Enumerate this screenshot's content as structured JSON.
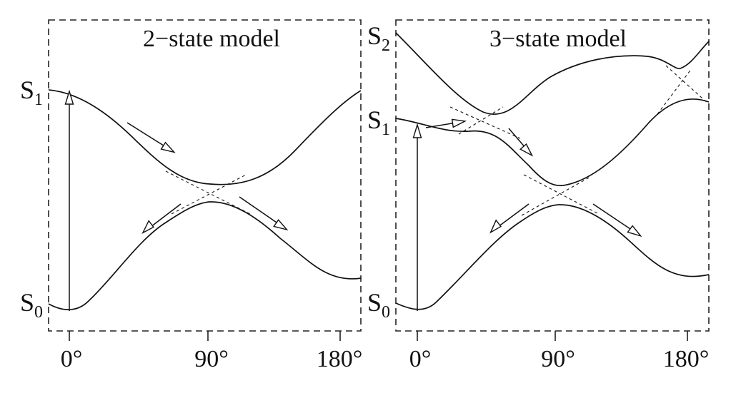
{
  "panels": [
    {
      "title": "2−state model",
      "states": [
        {
          "letter": "S",
          "sub": "1"
        },
        {
          "letter": "S",
          "sub": "0"
        }
      ],
      "ticks": [
        "0°",
        "90°",
        "180°"
      ]
    },
    {
      "title": "3−state model",
      "states": [
        {
          "letter": "S",
          "sub": "2"
        },
        {
          "letter": "S",
          "sub": "1"
        },
        {
          "letter": "S",
          "sub": "0"
        }
      ],
      "ticks": [
        "0°",
        "90°",
        "180°"
      ]
    }
  ]
}
